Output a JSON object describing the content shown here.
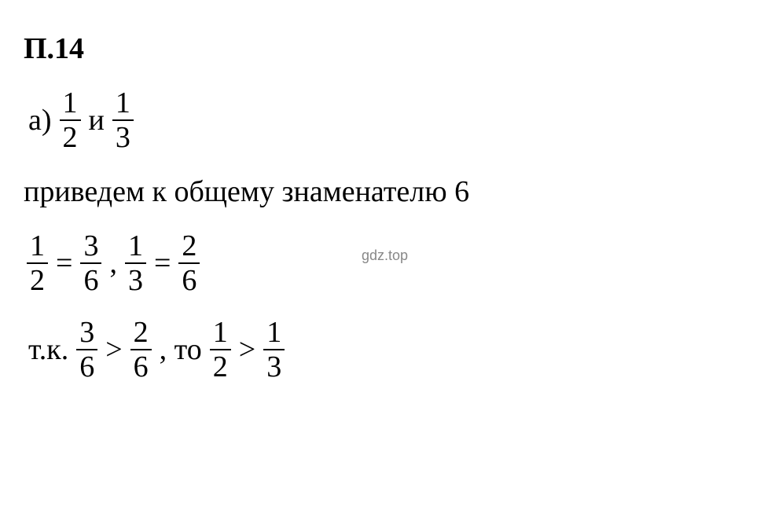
{
  "heading": "П.14",
  "line1": {
    "prefix": "а)",
    "frac1_num": "1",
    "frac1_den": "2",
    "connector": "и",
    "frac2_num": "1",
    "frac2_den": "3"
  },
  "line2": {
    "text": "приведем к общему знаменателю 6"
  },
  "watermark": "gdz.top",
  "line3": {
    "frac1_num": "1",
    "frac1_den": "2",
    "eq1": "=",
    "frac2_num": "3",
    "frac2_den": "6",
    "comma": ",",
    "frac3_num": "1",
    "frac3_den": "3",
    "eq2": "=",
    "frac4_num": "2",
    "frac4_den": "6"
  },
  "line4": {
    "prefix": "т.к.",
    "frac1_num": "3",
    "frac1_den": "6",
    "op1": ">",
    "frac2_num": "2",
    "frac2_den": "6",
    "mid": ", то",
    "frac3_num": "1",
    "frac3_den": "2",
    "op2": ">",
    "frac4_num": "1",
    "frac4_den": "3"
  },
  "styling": {
    "background_color": "#ffffff",
    "text_color": "#000000",
    "watermark_color": "#888888",
    "font_family": "Times New Roman",
    "heading_fontsize": 38,
    "body_fontsize": 38,
    "heading_weight": "bold",
    "fraction_border_width": 2
  }
}
